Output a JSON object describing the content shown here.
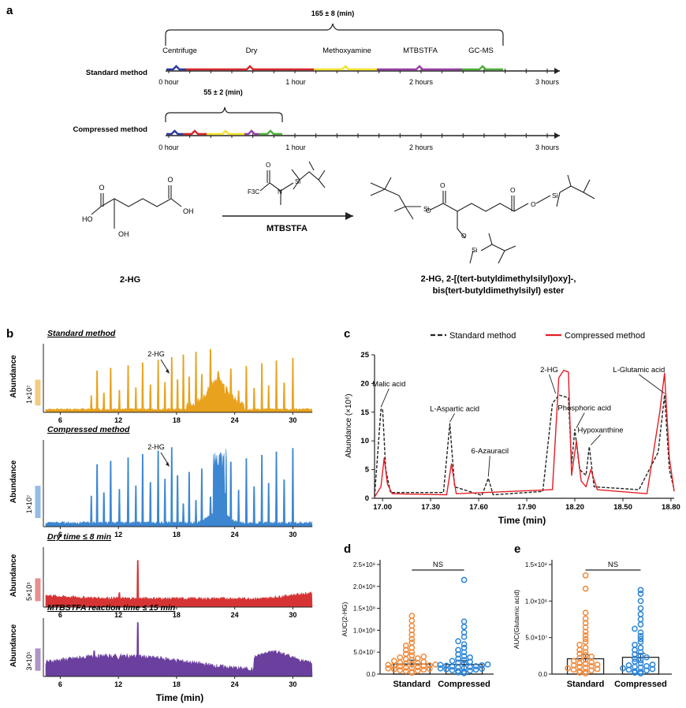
{
  "panels": {
    "a": "a",
    "b": "b",
    "c": "c",
    "d": "d",
    "e": "e"
  },
  "panel_a": {
    "total_std": "165 ± 8 (min)",
    "total_comp": "55 ± 2 (min)",
    "std_label": "Standard method",
    "comp_label": "Compressed method",
    "steps": [
      "Centrifuge",
      "Dry",
      "Methoxyamine",
      "MTBSTFA",
      "GC-MS"
    ],
    "step_colors": [
      "#2b3a9c",
      "#d6262a",
      "#f2e12e",
      "#9b3fa8",
      "#4caf3a"
    ],
    "ticks": [
      "0 hour",
      "1 hour",
      "2 hours",
      "3 hours"
    ],
    "reagent_label": "MTBSTFA",
    "reagent_f3c": "F3C",
    "reactant_name": "2-HG",
    "product_name_1": "2-HG, 2-[(tert-butyldimethylsilyl)oxy]-,",
    "product_name_2": "bis(tert-butyldimethylsilyl) ester",
    "atoms": {
      "O": "O",
      "OH": "OH",
      "HO": "HO",
      "N": "N",
      "Si": "Si"
    }
  },
  "panel_b": {
    "ylabel": "Abundance",
    "xlabel": "Time (min)",
    "xticks": [
      "6",
      "12",
      "18",
      "24",
      "30"
    ],
    "peak_label": "2-HG",
    "traces": [
      {
        "title": "Standard method",
        "scale": "1×10⁷",
        "color": "#e8a21d"
      },
      {
        "title": "Compressed method",
        "scale": "1×10⁷",
        "color": "#3d86d1"
      },
      {
        "title": "Dry time ≤ 8 min",
        "scale": "5×10⁵",
        "color": "#d63434"
      },
      {
        "title": "MTBSTFA reaction time ≤ 15 min",
        "scale": "3×10⁵",
        "color": "#6a3f9e"
      }
    ]
  },
  "panel_c": {
    "legend_std": "Standard method",
    "legend_comp": "Compressed method",
    "ylabel": "Abundance (×10⁶)",
    "xlabel": "Time (min)",
    "annotations": [
      "Malic acid",
      "L-Aspartic acid",
      "6-Azauracil",
      "2-HG",
      "Phosphoric acid",
      "Hypoxanthine",
      "L-Glutamic acid"
    ]
  },
  "chart_data": [
    {
      "type": "line",
      "panel": "c",
      "xlabel": "Time (min)",
      "ylabel": "Abundance (×10⁶)",
      "xlim": [
        16.95,
        18.82
      ],
      "ylim": [
        0,
        25
      ],
      "xticks": [
        17.0,
        17.3,
        17.6,
        17.9,
        18.2,
        18.5,
        18.8
      ],
      "yticks": [
        0,
        5,
        10,
        15,
        20,
        25
      ],
      "series": [
        {
          "name": "Standard method",
          "color": "#222222",
          "dash": true,
          "points": [
            [
              16.95,
              0.3
            ],
            [
              16.99,
              15.5
            ],
            [
              17.0,
              15.6
            ],
            [
              17.02,
              5
            ],
            [
              17.05,
              1
            ],
            [
              17.38,
              1
            ],
            [
              17.42,
              13
            ],
            [
              17.45,
              2
            ],
            [
              17.62,
              0.5
            ],
            [
              17.66,
              3.5
            ],
            [
              17.69,
              0.6
            ],
            [
              18.0,
              1.2
            ],
            [
              18.06,
              16.5
            ],
            [
              18.1,
              18
            ],
            [
              18.16,
              17.5
            ],
            [
              18.18,
              6
            ],
            [
              18.2,
              12
            ],
            [
              18.23,
              5
            ],
            [
              18.27,
              4
            ],
            [
              18.29,
              9
            ],
            [
              18.32,
              2
            ],
            [
              18.6,
              1.5
            ],
            [
              18.72,
              8
            ],
            [
              18.76,
              18
            ],
            [
              18.79,
              5
            ],
            [
              18.82,
              1.5
            ]
          ]
        },
        {
          "name": "Compressed method",
          "color": "#e21f26",
          "dash": false,
          "points": [
            [
              16.95,
              0.2
            ],
            [
              16.99,
              2
            ],
            [
              17.01,
              7
            ],
            [
              17.03,
              2.5
            ],
            [
              17.06,
              0.8
            ],
            [
              17.4,
              0.6
            ],
            [
              17.43,
              6
            ],
            [
              17.46,
              0.8
            ],
            [
              18.06,
              1.5
            ],
            [
              18.1,
              21
            ],
            [
              18.13,
              22.3
            ],
            [
              18.16,
              22
            ],
            [
              18.18,
              4
            ],
            [
              18.21,
              10
            ],
            [
              18.24,
              3
            ],
            [
              18.27,
              2
            ],
            [
              18.3,
              5
            ],
            [
              18.34,
              1.5
            ],
            [
              18.65,
              0.8
            ],
            [
              18.73,
              15
            ],
            [
              18.76,
              21.8
            ],
            [
              18.79,
              7
            ],
            [
              18.82,
              1.2
            ]
          ]
        }
      ]
    },
    {
      "type": "scatter",
      "panel": "d",
      "ylabel": "AUC(2-HG)",
      "categories": [
        "Standard",
        "Compressed"
      ],
      "ylim": [
        0,
        250000000
      ],
      "yticks": [
        "0.0",
        "5.0×10⁷",
        "1.0×10⁸",
        "1.5×10⁸",
        "2.0×10⁸",
        "2.5×10⁸"
      ],
      "bar_means": [
        23000000,
        22000000
      ],
      "significance": "NS",
      "series": [
        {
          "name": "Standard",
          "color": "#f08a3a",
          "values": [
            3000000.0,
            5000000.0,
            7000000.0,
            8000000.0,
            9000000.0,
            10000000.0,
            11000000.0,
            12000000.0,
            13000000.0,
            14000000.0,
            15000000.0,
            16000000.0,
            17000000.0,
            18000000.0,
            19000000.0,
            20000000.0,
            21000000.0,
            22000000.0,
            23000000.0,
            24000000.0,
            25000000.0,
            26000000.0,
            28000000.0,
            30000000.0,
            32000000.0,
            34000000.0,
            36000000.0,
            38000000.0,
            40000000.0,
            43000000.0,
            46000000.0,
            50000000.0,
            55000000.0,
            60000000.0,
            65000000.0,
            72000000.0,
            80000000.0,
            90000000.0,
            100000000.0,
            110000000.0,
            122000000.0,
            133000000.0
          ]
        },
        {
          "name": "Compressed",
          "color": "#2b84d6",
          "values": [
            2000000.0,
            4000000.0,
            6000000.0,
            7000000.0,
            8000000.0,
            9000000.0,
            10000000.0,
            11000000.0,
            12000000.0,
            13000000.0,
            14000000.0,
            15000000.0,
            16000000.0,
            17000000.0,
            18000000.0,
            19000000.0,
            20000000.0,
            21000000.0,
            22000000.0,
            24000000.0,
            26000000.0,
            28000000.0,
            30000000.0,
            32000000.0,
            35000000.0,
            38000000.0,
            41000000.0,
            45000000.0,
            50000000.0,
            55000000.0,
            60000000.0,
            68000000.0,
            75000000.0,
            85000000.0,
            95000000.0,
            108000000.0,
            120000000.0,
            215000000.0
          ]
        }
      ]
    },
    {
      "type": "scatter",
      "panel": "e",
      "ylabel": "AUC(Glutamic acid)",
      "categories": [
        "Standard",
        "Compressed"
      ],
      "ylim": [
        0,
        150000000
      ],
      "yticks": [
        "0.0",
        "5.0×10⁷",
        "1.0×10⁸",
        "1.5×10⁸"
      ],
      "bar_means": [
        21000000,
        23000000
      ],
      "significance": "NS",
      "series": [
        {
          "name": "Standard",
          "color": "#f08a3a",
          "values": [
            1000000.0,
            2000000.0,
            3000000.0,
            4000000.0,
            5000000.0,
            6000000.0,
            7000000.0,
            8000000.0,
            9000000.0,
            10000000.0,
            11000000.0,
            12000000.0,
            13000000.0,
            14000000.0,
            15000000.0,
            16000000.0,
            18000000.0,
            20000000.0,
            22000000.0,
            24000000.0,
            26000000.0,
            28000000.0,
            30000000.0,
            33000000.0,
            36000000.0,
            40000000.0,
            44000000.0,
            48000000.0,
            53000000.0,
            58000000.0,
            64000000.0,
            70000000.0,
            76000000.0,
            84000000.0,
            117000000.0,
            135000000.0
          ]
        },
        {
          "name": "Compressed",
          "color": "#2b84d6",
          "values": [
            1000000.0,
            2000000.0,
            3000000.0,
            4000000.0,
            5000000.0,
            6000000.0,
            7000000.0,
            8000000.0,
            9000000.0,
            10000000.0,
            11000000.0,
            12000000.0,
            13000000.0,
            15000000.0,
            17000000.0,
            19000000.0,
            21000000.0,
            23000000.0,
            25000000.0,
            27000000.0,
            30000000.0,
            33000000.0,
            36000000.0,
            40000000.0,
            44000000.0,
            48000000.0,
            52000000.0,
            57000000.0,
            62000000.0,
            68000000.0,
            75000000.0,
            82000000.0,
            90000000.0,
            100000000.0,
            110000000.0,
            115000000.0
          ]
        }
      ]
    }
  ]
}
